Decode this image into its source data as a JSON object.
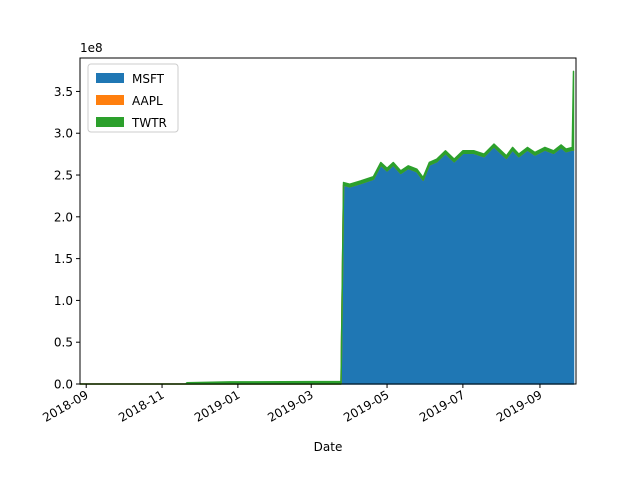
{
  "chart_data": {
    "type": "area",
    "stacked": true,
    "title": "",
    "xlabel": "Date",
    "ylabel": "",
    "y_scale_label": "1e8",
    "y_multiplier": 100000000,
    "xlim": [
      "2018-08-27",
      "2019-09-30"
    ],
    "ylim": [
      0,
      3.9
    ],
    "x_ticks": [
      {
        "date": "2018-09-01",
        "label": "2018-09"
      },
      {
        "date": "2018-11-01",
        "label": "2018-11"
      },
      {
        "date": "2019-01-01",
        "label": "2019-01"
      },
      {
        "date": "2019-03-01",
        "label": "2019-03"
      },
      {
        "date": "2019-05-01",
        "label": "2019-05"
      },
      {
        "date": "2019-07-01",
        "label": "2019-07"
      },
      {
        "date": "2019-09-01",
        "label": "2019-09"
      }
    ],
    "y_ticks": [
      {
        "value": 0.0,
        "label": "0.0"
      },
      {
        "value": 0.5,
        "label": "0.5"
      },
      {
        "value": 1.0,
        "label": "1.0"
      },
      {
        "value": 1.5,
        "label": "1.5"
      },
      {
        "value": 2.0,
        "label": "2.0"
      },
      {
        "value": 2.5,
        "label": "2.5"
      },
      {
        "value": 3.0,
        "label": "3.0"
      },
      {
        "value": 3.5,
        "label": "3.5"
      }
    ],
    "legend": {
      "placement": "upper-left"
    },
    "series": [
      {
        "name": "MSFT",
        "color": "#1f77b4",
        "points": [
          [
            "2018-08-27",
            0.0
          ],
          [
            "2018-11-20",
            0.0
          ],
          [
            "2018-11-21",
            0.0
          ],
          [
            "2018-12-26",
            0.0
          ],
          [
            "2019-03-25",
            0.0
          ],
          [
            "2019-03-27",
            2.38
          ],
          [
            "2019-04-01",
            2.36
          ],
          [
            "2019-04-10",
            2.4
          ],
          [
            "2019-04-20",
            2.45
          ],
          [
            "2019-04-26",
            2.62
          ],
          [
            "2019-05-01",
            2.55
          ],
          [
            "2019-05-06",
            2.62
          ],
          [
            "2019-05-12",
            2.52
          ],
          [
            "2019-05-18",
            2.58
          ],
          [
            "2019-05-25",
            2.54
          ],
          [
            "2019-05-30",
            2.44
          ],
          [
            "2019-06-04",
            2.62
          ],
          [
            "2019-06-10",
            2.66
          ],
          [
            "2019-06-17",
            2.76
          ],
          [
            "2019-06-24",
            2.66
          ],
          [
            "2019-07-01",
            2.76
          ],
          [
            "2019-07-10",
            2.76
          ],
          [
            "2019-07-18",
            2.72
          ],
          [
            "2019-07-26",
            2.84
          ],
          [
            "2019-08-05",
            2.7
          ],
          [
            "2019-08-10",
            2.8
          ],
          [
            "2019-08-15",
            2.72
          ],
          [
            "2019-08-22",
            2.8
          ],
          [
            "2019-08-28",
            2.74
          ],
          [
            "2019-09-05",
            2.8
          ],
          [
            "2019-09-12",
            2.76
          ],
          [
            "2019-09-18",
            2.83
          ],
          [
            "2019-09-22",
            2.78
          ],
          [
            "2019-09-27",
            2.8
          ],
          [
            "2019-09-28",
            2.8
          ]
        ]
      },
      {
        "name": "AAPL",
        "color": "#ff7f0e",
        "points": [
          [
            "2018-08-27",
            0.0
          ],
          [
            "2019-09-28",
            0.0
          ]
        ]
      },
      {
        "name": "TWTR",
        "color": "#2ca02c",
        "points": [
          [
            "2018-08-27",
            0.0
          ],
          [
            "2018-11-20",
            0.0
          ],
          [
            "2018-11-21",
            0.015
          ],
          [
            "2018-12-26",
            0.025
          ],
          [
            "2019-03-25",
            0.03
          ],
          [
            "2019-03-27",
            0.03
          ],
          [
            "2019-09-27",
            0.03
          ],
          [
            "2019-09-28",
            0.94
          ]
        ]
      }
    ]
  }
}
